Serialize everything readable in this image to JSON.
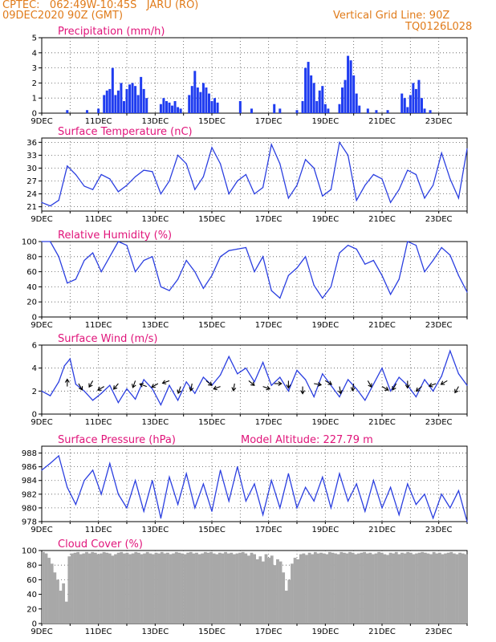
{
  "header": {
    "line1": "CPTEC:   062:49W-10:45S   JARU (RO)",
    "line2": "09DEC2020 90Z (GMT)",
    "grid_note": "Vertical Grid Line: 90Z",
    "code": "TQ0126L028",
    "altitude": "Model Altitude: 227.79 m"
  },
  "colors": {
    "header": "#e07b1a",
    "title": "#e0147a",
    "line": "#2b3fe0",
    "bar": "#1f3cf0",
    "cloud": "#a8a8a8"
  },
  "x_ticks": [
    "9DEC",
    "11DEC",
    "13DEC",
    "15DEC",
    "17DEC",
    "19DEC",
    "21DEC",
    "23DEC"
  ],
  "chart_data": [
    {
      "type": "bar",
      "title": "Precipitation (mm/h)",
      "ylim": [
        0,
        5
      ],
      "yticks": [
        0,
        1,
        2,
        3,
        4,
        5
      ],
      "x_day_range": [
        9,
        24
      ],
      "points": [
        [
          9.9,
          0.2
        ],
        [
          10.6,
          0.2
        ],
        [
          11.0,
          0.3
        ],
        [
          11.2,
          1.2
        ],
        [
          11.3,
          1.5
        ],
        [
          11.4,
          1.6
        ],
        [
          11.5,
          3.0
        ],
        [
          11.6,
          1.2
        ],
        [
          11.7,
          1.5
        ],
        [
          11.8,
          2.0
        ],
        [
          11.9,
          0.8
        ],
        [
          12.0,
          1.6
        ],
        [
          12.1,
          1.9
        ],
        [
          12.2,
          2.0
        ],
        [
          12.3,
          1.8
        ],
        [
          12.4,
          1.2
        ],
        [
          12.5,
          2.4
        ],
        [
          12.6,
          1.6
        ],
        [
          12.7,
          1.0
        ],
        [
          13.2,
          0.6
        ],
        [
          13.3,
          1.0
        ],
        [
          13.4,
          0.8
        ],
        [
          13.5,
          0.7
        ],
        [
          13.6,
          0.5
        ],
        [
          13.7,
          0.8
        ],
        [
          13.8,
          0.4
        ],
        [
          13.9,
          0.3
        ],
        [
          14.2,
          1.2
        ],
        [
          14.3,
          1.8
        ],
        [
          14.4,
          2.8
        ],
        [
          14.5,
          1.7
        ],
        [
          14.6,
          1.4
        ],
        [
          14.7,
          2.0
        ],
        [
          14.8,
          1.7
        ],
        [
          14.9,
          1.3
        ],
        [
          15.0,
          0.8
        ],
        [
          15.1,
          1.0
        ],
        [
          15.2,
          0.7
        ],
        [
          16.0,
          0.8
        ],
        [
          16.4,
          0.3
        ],
        [
          17.2,
          0.6
        ],
        [
          17.4,
          0.3
        ],
        [
          18.0,
          0.2
        ],
        [
          18.2,
          0.8
        ],
        [
          18.3,
          3.0
        ],
        [
          18.4,
          3.4
        ],
        [
          18.5,
          2.5
        ],
        [
          18.6,
          2.0
        ],
        [
          18.7,
          0.8
        ],
        [
          18.8,
          1.5
        ],
        [
          18.9,
          1.8
        ],
        [
          19.0,
          0.6
        ],
        [
          19.1,
          0.3
        ],
        [
          19.5,
          0.6
        ],
        [
          19.6,
          1.7
        ],
        [
          19.7,
          2.2
        ],
        [
          19.8,
          3.8
        ],
        [
          19.9,
          3.5
        ],
        [
          20.0,
          2.5
        ],
        [
          20.1,
          1.3
        ],
        [
          20.2,
          0.5
        ],
        [
          20.5,
          0.3
        ],
        [
          20.8,
          0.2
        ],
        [
          21.2,
          0.2
        ],
        [
          21.7,
          1.3
        ],
        [
          21.8,
          1.0
        ],
        [
          21.9,
          0.4
        ],
        [
          22.0,
          1.2
        ],
        [
          22.1,
          2.0
        ],
        [
          22.2,
          1.6
        ],
        [
          22.3,
          2.2
        ],
        [
          22.4,
          1.0
        ],
        [
          22.5,
          0.3
        ],
        [
          22.7,
          0.2
        ]
      ]
    },
    {
      "type": "line",
      "title": "Surface Temperature (nC)",
      "ylim": [
        20,
        37
      ],
      "yticks": [
        21,
        24,
        27,
        30,
        33,
        36
      ],
      "x_day_range": [
        9,
        24
      ],
      "points": [
        [
          9.0,
          22
        ],
        [
          9.3,
          21.2
        ],
        [
          9.6,
          22.5
        ],
        [
          9.9,
          30.5
        ],
        [
          10.2,
          28.5
        ],
        [
          10.5,
          25.8
        ],
        [
          10.8,
          25
        ],
        [
          11.1,
          28.5
        ],
        [
          11.4,
          27.5
        ],
        [
          11.7,
          24.5
        ],
        [
          12.0,
          26
        ],
        [
          12.3,
          28
        ],
        [
          12.6,
          29.5
        ],
        [
          12.9,
          29.2
        ],
        [
          13.2,
          24
        ],
        [
          13.5,
          27
        ],
        [
          13.8,
          33
        ],
        [
          14.1,
          31
        ],
        [
          14.4,
          25
        ],
        [
          14.7,
          28
        ],
        [
          15.0,
          34.8
        ],
        [
          15.3,
          31
        ],
        [
          15.6,
          24
        ],
        [
          15.9,
          27
        ],
        [
          16.2,
          28.5
        ],
        [
          16.5,
          24
        ],
        [
          16.8,
          25.5
        ],
        [
          17.1,
          35.5
        ],
        [
          17.4,
          31
        ],
        [
          17.7,
          23
        ],
        [
          18.0,
          26
        ],
        [
          18.3,
          32
        ],
        [
          18.6,
          30
        ],
        [
          18.9,
          23.5
        ],
        [
          19.2,
          25
        ],
        [
          19.5,
          36
        ],
        [
          19.8,
          33
        ],
        [
          20.1,
          22.5
        ],
        [
          20.4,
          26
        ],
        [
          20.7,
          28.5
        ],
        [
          21.0,
          27.5
        ],
        [
          21.3,
          22
        ],
        [
          21.6,
          25
        ],
        [
          21.9,
          29.5
        ],
        [
          22.2,
          28.5
        ],
        [
          22.5,
          23
        ],
        [
          22.8,
          26
        ],
        [
          23.1,
          33.5
        ],
        [
          23.4,
          27.5
        ],
        [
          23.7,
          23
        ],
        [
          24.0,
          34.5
        ]
      ]
    },
    {
      "type": "line",
      "title": "Relative Humidity (%)",
      "ylim": [
        0,
        100
      ],
      "yticks": [
        0,
        20,
        40,
        60,
        80,
        100
      ],
      "x_day_range": [
        9,
        24
      ],
      "points": [
        [
          9.0,
          100
        ],
        [
          9.3,
          100
        ],
        [
          9.6,
          80
        ],
        [
          9.9,
          45
        ],
        [
          10.2,
          50
        ],
        [
          10.5,
          75
        ],
        [
          10.8,
          85
        ],
        [
          11.1,
          60
        ],
        [
          11.4,
          80
        ],
        [
          11.7,
          100
        ],
        [
          12.0,
          95
        ],
        [
          12.3,
          60
        ],
        [
          12.6,
          75
        ],
        [
          12.9,
          80
        ],
        [
          13.2,
          40
        ],
        [
          13.5,
          35
        ],
        [
          13.8,
          50
        ],
        [
          14.1,
          75
        ],
        [
          14.4,
          60
        ],
        [
          14.7,
          38
        ],
        [
          15.0,
          55
        ],
        [
          15.3,
          80
        ],
        [
          15.6,
          88
        ],
        [
          15.9,
          90
        ],
        [
          16.2,
          92
        ],
        [
          16.5,
          60
        ],
        [
          16.8,
          80
        ],
        [
          17.1,
          35
        ],
        [
          17.4,
          25
        ],
        [
          17.7,
          55
        ],
        [
          18.0,
          65
        ],
        [
          18.3,
          80
        ],
        [
          18.6,
          42
        ],
        [
          18.9,
          25
        ],
        [
          19.2,
          40
        ],
        [
          19.5,
          85
        ],
        [
          19.8,
          95
        ],
        [
          20.1,
          90
        ],
        [
          20.4,
          70
        ],
        [
          20.7,
          75
        ],
        [
          21.0,
          55
        ],
        [
          21.3,
          30
        ],
        [
          21.6,
          50
        ],
        [
          21.9,
          100
        ],
        [
          22.2,
          95
        ],
        [
          22.5,
          60
        ],
        [
          22.8,
          75
        ],
        [
          23.1,
          92
        ],
        [
          23.4,
          82
        ],
        [
          23.7,
          55
        ],
        [
          24.0,
          33
        ]
      ]
    },
    {
      "type": "line",
      "title": "Surface Wind (m/s)",
      "ylim": [
        0,
        6
      ],
      "yticks": [
        0,
        2,
        4,
        6
      ],
      "x_day_range": [
        9,
        24
      ],
      "points": [
        [
          9.0,
          2.0
        ],
        [
          9.3,
          1.6
        ],
        [
          9.6,
          2.8
        ],
        [
          9.8,
          4.2
        ],
        [
          10.0,
          4.8
        ],
        [
          10.2,
          2.6
        ],
        [
          10.5,
          2.0
        ],
        [
          10.8,
          1.2
        ],
        [
          11.1,
          1.8
        ],
        [
          11.4,
          2.5
        ],
        [
          11.7,
          1.0
        ],
        [
          12.0,
          2.2
        ],
        [
          12.3,
          1.3
        ],
        [
          12.6,
          3.0
        ],
        [
          12.9,
          2.2
        ],
        [
          13.2,
          0.8
        ],
        [
          13.5,
          2.5
        ],
        [
          13.8,
          1.2
        ],
        [
          14.1,
          2.8
        ],
        [
          14.4,
          1.8
        ],
        [
          14.7,
          3.2
        ],
        [
          15.0,
          2.5
        ],
        [
          15.3,
          3.4
        ],
        [
          15.6,
          5.0
        ],
        [
          15.9,
          3.5
        ],
        [
          16.2,
          4.0
        ],
        [
          16.5,
          2.8
        ],
        [
          16.8,
          4.5
        ],
        [
          17.1,
          2.5
        ],
        [
          17.4,
          3.2
        ],
        [
          17.7,
          2.0
        ],
        [
          18.0,
          3.8
        ],
        [
          18.3,
          3.0
        ],
        [
          18.6,
          1.5
        ],
        [
          18.9,
          3.5
        ],
        [
          19.2,
          2.5
        ],
        [
          19.5,
          1.5
        ],
        [
          19.8,
          3.0
        ],
        [
          20.1,
          2.2
        ],
        [
          20.4,
          1.2
        ],
        [
          20.7,
          2.6
        ],
        [
          21.0,
          4.0
        ],
        [
          21.3,
          2.0
        ],
        [
          21.6,
          3.2
        ],
        [
          21.9,
          2.5
        ],
        [
          22.2,
          1.5
        ],
        [
          22.5,
          3.0
        ],
        [
          22.8,
          2.0
        ],
        [
          23.1,
          3.3
        ],
        [
          23.4,
          5.5
        ],
        [
          23.7,
          3.5
        ],
        [
          24.0,
          2.5
        ]
      ]
    },
    {
      "type": "line",
      "title": "Surface Pressure (hPa)",
      "ylim": [
        978,
        989
      ],
      "yticks": [
        978,
        980,
        982,
        984,
        986,
        988
      ],
      "x_day_range": [
        9,
        24
      ],
      "points": [
        [
          9.0,
          985.5
        ],
        [
          9.3,
          986.5
        ],
        [
          9.6,
          987.6
        ],
        [
          9.9,
          983
        ],
        [
          10.2,
          980.5
        ],
        [
          10.5,
          984
        ],
        [
          10.8,
          985.5
        ],
        [
          11.1,
          982
        ],
        [
          11.4,
          986.5
        ],
        [
          11.7,
          982
        ],
        [
          12.0,
          980
        ],
        [
          12.3,
          984
        ],
        [
          12.6,
          979.5
        ],
        [
          12.9,
          984
        ],
        [
          13.2,
          978.5
        ],
        [
          13.5,
          984.5
        ],
        [
          13.8,
          980.5
        ],
        [
          14.1,
          985
        ],
        [
          14.4,
          980
        ],
        [
          14.7,
          983.5
        ],
        [
          15.0,
          979.5
        ],
        [
          15.3,
          985.5
        ],
        [
          15.6,
          981
        ],
        [
          15.9,
          986
        ],
        [
          16.2,
          981
        ],
        [
          16.5,
          983.5
        ],
        [
          16.8,
          979
        ],
        [
          17.1,
          984
        ],
        [
          17.4,
          980
        ],
        [
          17.7,
          985
        ],
        [
          18.0,
          980
        ],
        [
          18.3,
          983
        ],
        [
          18.6,
          981
        ],
        [
          18.9,
          984.5
        ],
        [
          19.2,
          980
        ],
        [
          19.5,
          985
        ],
        [
          19.8,
          981
        ],
        [
          20.1,
          983.5
        ],
        [
          20.4,
          979.5
        ],
        [
          20.7,
          984
        ],
        [
          21.0,
          980
        ],
        [
          21.3,
          983
        ],
        [
          21.6,
          979
        ],
        [
          21.9,
          983.5
        ],
        [
          22.2,
          980.5
        ],
        [
          22.5,
          982
        ],
        [
          22.8,
          978.5
        ],
        [
          23.1,
          982
        ],
        [
          23.4,
          980
        ],
        [
          23.7,
          982.5
        ],
        [
          24.0,
          978
        ]
      ]
    },
    {
      "type": "bar",
      "title": "Cloud Cover (%)",
      "ylim": [
        0,
        100
      ],
      "yticks": [
        0,
        20,
        40,
        60,
        80,
        100
      ],
      "x_day_range": [
        9,
        24
      ],
      "values": [
        98,
        96,
        90,
        82,
        70,
        60,
        45,
        55,
        30,
        92,
        96,
        97,
        98,
        95,
        96,
        98,
        96,
        98,
        97,
        95,
        96,
        98,
        97,
        96,
        93,
        95,
        97,
        98,
        96,
        97,
        95,
        96,
        98,
        97,
        95,
        96,
        98,
        96,
        95,
        97,
        96,
        98,
        96,
        97,
        95,
        96,
        98,
        97,
        96,
        95,
        97,
        98,
        96,
        97,
        95,
        96,
        98,
        97,
        98,
        96,
        95,
        97,
        96,
        98,
        96,
        97,
        95,
        96,
        97,
        98,
        96,
        93,
        97,
        95,
        88,
        92,
        85,
        95,
        90,
        93,
        80,
        88,
        85,
        70,
        45,
        60,
        82,
        90,
        88,
        95,
        96,
        94,
        97,
        95,
        98,
        96,
        97,
        96,
        95,
        98,
        97,
        96,
        95,
        98,
        97,
        96,
        98,
        97,
        95,
        96,
        97,
        98,
        96,
        97,
        95,
        96,
        98,
        97,
        95,
        94,
        97,
        96,
        98,
        95,
        97,
        96,
        98,
        97,
        95,
        96,
        97,
        98,
        97,
        96,
        95,
        98,
        96,
        97,
        95,
        96,
        97,
        98,
        96,
        95,
        97,
        96,
        95
      ]
    }
  ]
}
